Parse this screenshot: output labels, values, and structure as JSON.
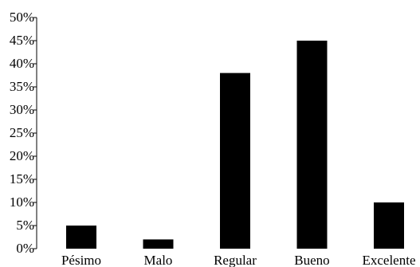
{
  "chart_data": {
    "type": "bar",
    "title": "",
    "xlabel": "",
    "ylabel": "",
    "categories": [
      "Pésimo",
      "Malo",
      "Regular",
      "Bueno",
      "Excelente"
    ],
    "values": [
      5,
      2,
      38,
      45,
      10
    ],
    "ylim": [
      0,
      50
    ],
    "yticks": [
      0,
      5,
      10,
      15,
      20,
      25,
      30,
      35,
      40,
      45,
      50
    ],
    "ytick_labels": [
      "0%",
      "5%",
      "10%",
      "15%",
      "20%",
      "25%",
      "30%",
      "35%",
      "40%",
      "45%",
      "50%"
    ],
    "grid": false,
    "legend": "none",
    "colors": {
      "bar": "#000000",
      "axis": "#000000"
    }
  }
}
